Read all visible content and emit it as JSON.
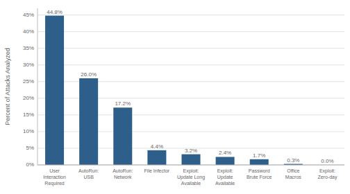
{
  "chart_data": {
    "type": "bar",
    "categories": [
      "User\nInteraction\nRequired",
      "AutoRun:\nUSB",
      "AutoRun:\nNetwork",
      "File Infector",
      "Exploit:\nUpdate Long\nAvailable",
      "Exploit:\nUpdate\nAvailable",
      "Password\nBrute Force",
      "Office\nMacros",
      "Exploit:\nZero-day"
    ],
    "values": [
      44.8,
      26.0,
      17.2,
      4.4,
      3.2,
      2.4,
      1.7,
      0.3,
      0.0
    ],
    "value_labels": [
      "44.8%",
      "26.0%",
      "17.2%",
      "4.4%",
      "3.2%",
      "2.4%",
      "1.7%",
      "0.3%",
      "0.0%"
    ],
    "data_labels": true,
    "color": "#2E5F8A",
    "ylabel": "Percent of Attacks Analyzed",
    "ylim": [
      0,
      47
    ],
    "yticks": [
      {
        "value": 0,
        "label": "0%"
      },
      {
        "value": 5,
        "label": "5%"
      },
      {
        "value": 10,
        "label": "10%"
      },
      {
        "value": 15,
        "label": "15%"
      },
      {
        "value": 20,
        "label": "20%"
      },
      {
        "value": 25,
        "label": "25%"
      },
      {
        "value": 30,
        "label": "30%"
      },
      {
        "value": 35,
        "label": "35%"
      },
      {
        "value": 40,
        "label": "40%"
      },
      {
        "value": 45,
        "label": "45%"
      }
    ],
    "grid": true
  }
}
